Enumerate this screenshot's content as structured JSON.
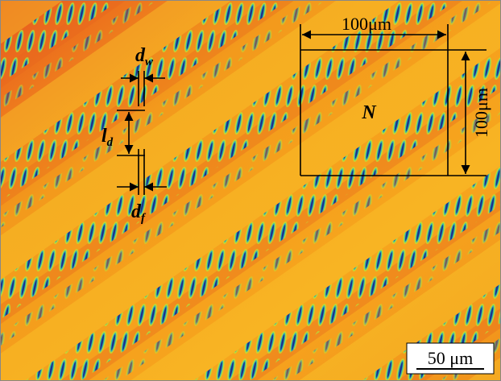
{
  "annotations": {
    "d_w": {
      "main": "d",
      "sub": "w"
    },
    "l_d": {
      "main": "l",
      "sub": "d"
    },
    "d_f": {
      "main": "d",
      "sub": "f"
    },
    "region": "N",
    "width": "100μm",
    "height": "100μm",
    "scale_bar": "50 μm"
  }
}
